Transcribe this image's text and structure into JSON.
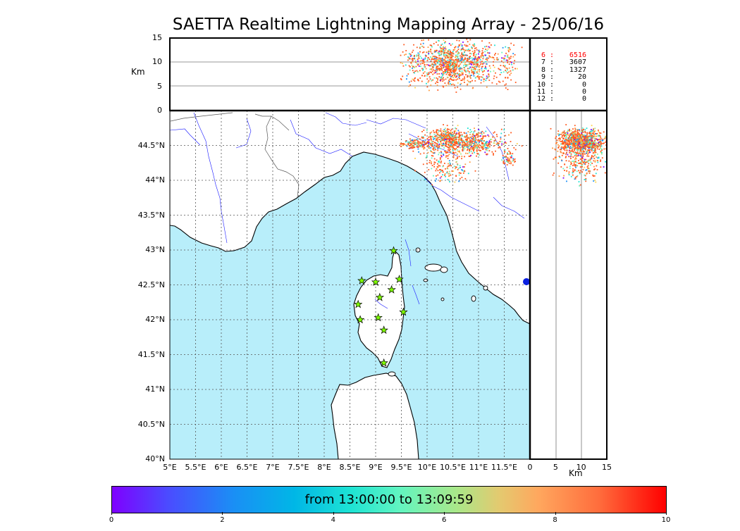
{
  "title": "SAETTA Realtime Lightning Mapping Array - 25/06/16",
  "axes": {
    "alt_unit": "Km",
    "alt_ticks": [
      "15",
      "10",
      "5",
      "0"
    ],
    "lat_ticks": [
      "44.5°N",
      "44°N",
      "43.5°N",
      "43°N",
      "42.5°N",
      "42°N",
      "41.5°N",
      "41°N",
      "40.5°N",
      "40°N"
    ],
    "lon_ticks": [
      "5°E",
      "5.5°E",
      "6°E",
      "6.5°E",
      "7°E",
      "7.5°E",
      "8°E",
      "8.5°E",
      "9°E",
      "9.5°E",
      "10°E",
      "10.5°E",
      "11°E",
      "11.5°E"
    ],
    "right_x_ticks": [
      "0",
      "5",
      "10",
      "15"
    ],
    "right_x_unit": "Km"
  },
  "station_counts": [
    {
      "station": "6",
      "count": "6516",
      "color": "#ff0000"
    },
    {
      "station": "7",
      "count": "3607",
      "color": "#000000"
    },
    {
      "station": "8",
      "count": "1327",
      "color": "#000000"
    },
    {
      "station": "9",
      "count": "20",
      "color": "#000000"
    },
    {
      "station": "10",
      "count": "0",
      "color": "#000000"
    },
    {
      "station": "11",
      "count": "0",
      "color": "#000000"
    },
    {
      "station": "12",
      "count": "0",
      "color": "#000000"
    }
  ],
  "stations": [
    {
      "lon": 9.35,
      "lat": 42.99
    },
    {
      "lon": 8.73,
      "lat": 42.56
    },
    {
      "lon": 9.0,
      "lat": 42.54
    },
    {
      "lon": 9.46,
      "lat": 42.58
    },
    {
      "lon": 9.31,
      "lat": 42.43
    },
    {
      "lon": 9.08,
      "lat": 42.32
    },
    {
      "lon": 8.66,
      "lat": 42.22
    },
    {
      "lon": 9.54,
      "lat": 42.11
    },
    {
      "lon": 8.7,
      "lat": 42.0
    },
    {
      "lon": 9.05,
      "lat": 42.03
    },
    {
      "lon": 9.16,
      "lat": 41.85
    },
    {
      "lon": 9.16,
      "lat": 41.38
    }
  ],
  "lightning_clusters": [
    {
      "lon": 10.7,
      "lat": 44.55,
      "slon": 0.4,
      "slat": 0.09,
      "n": 700
    },
    {
      "lon": 10.35,
      "lat": 44.63,
      "slon": 0.12,
      "slat": 0.06,
      "n": 160
    },
    {
      "lon": 9.8,
      "lat": 44.53,
      "slon": 0.15,
      "slat": 0.04,
      "n": 120
    },
    {
      "lon": 10.35,
      "lat": 44.2,
      "slon": 0.25,
      "slat": 0.12,
      "n": 150
    },
    {
      "lon": 11.6,
      "lat": 44.32,
      "slon": 0.08,
      "slat": 0.04,
      "n": 50
    }
  ],
  "colorbar": {
    "label": "from 13:00:00 to 13:09:59",
    "ticks": [
      "0",
      "2",
      "4",
      "6",
      "8",
      "10"
    ],
    "colors": [
      "#7f00ff",
      "#1a8ff5",
      "#1de3d4",
      "#a8e88a",
      "#ffa75e",
      "#ff0000"
    ]
  },
  "colors": {
    "sea": "#b8eefa",
    "land": "#ffffff",
    "rivers": "#1a1aff",
    "station_fill": "#7fff00"
  }
}
